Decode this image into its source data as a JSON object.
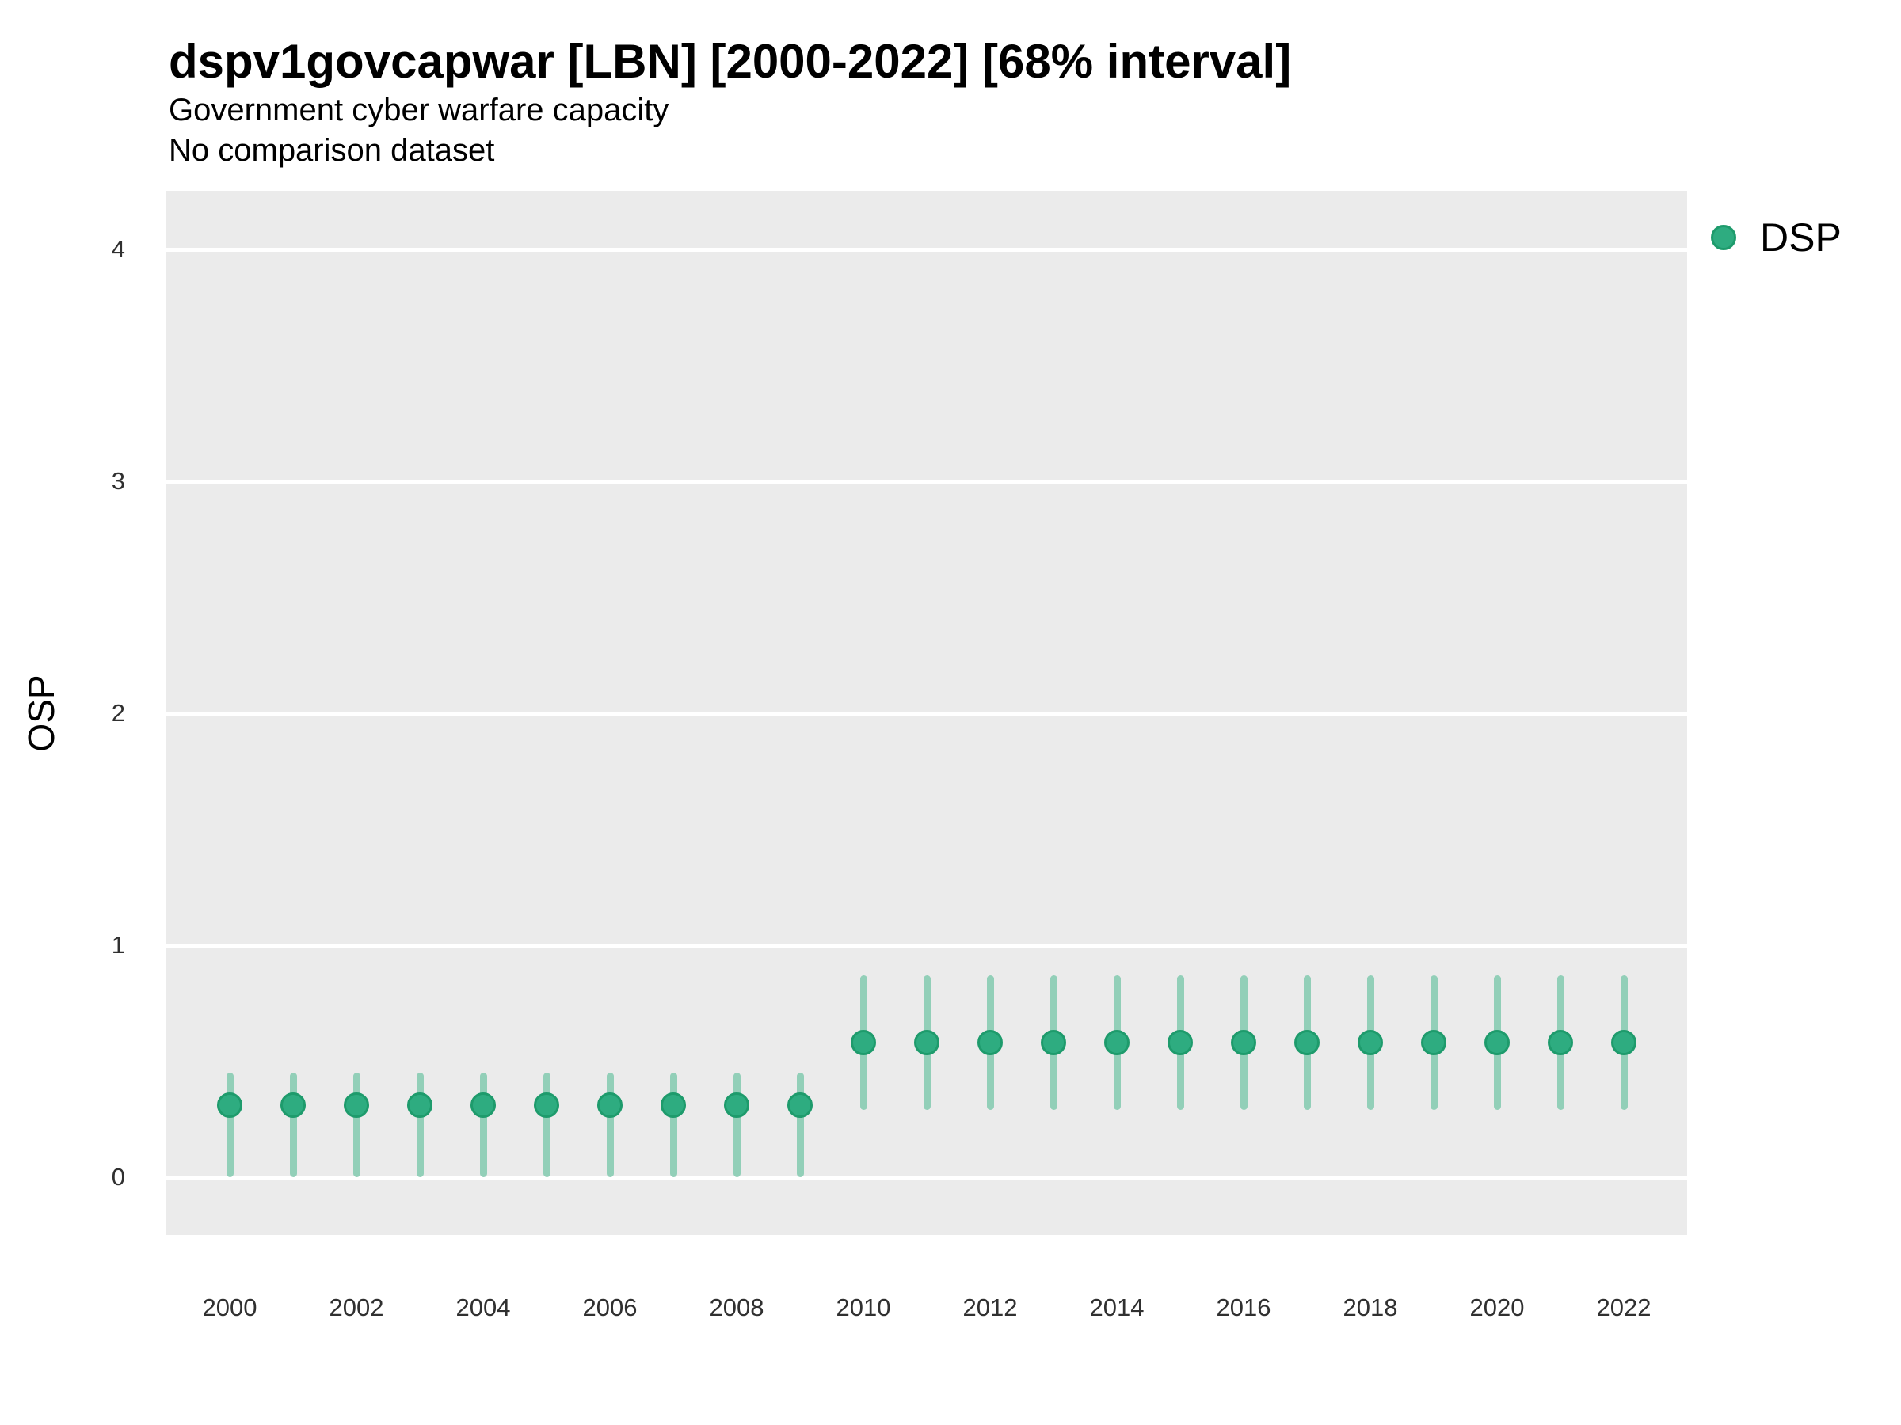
{
  "chart_data": {
    "type": "scatter",
    "title": "dspv1govcapwar [LBN] [2000-2022] [68% interval]",
    "subtitle": "Government cyber warfare capacity",
    "note": "No comparison dataset",
    "xlabel": "",
    "ylabel": "OSP",
    "interval_level": "68%",
    "ylim": [
      -0.25,
      4.25
    ],
    "yticks": [
      0,
      1,
      2,
      3,
      4
    ],
    "xticks": [
      2000,
      2002,
      2004,
      2006,
      2008,
      2010,
      2012,
      2014,
      2016,
      2018,
      2020,
      2022
    ],
    "grid": "major horizontal white lines on gray panel, no minor gridlines",
    "legend_position": "right-top",
    "series": [
      {
        "name": "DSP",
        "x": [
          2000,
          2001,
          2002,
          2003,
          2004,
          2005,
          2006,
          2007,
          2008,
          2009,
          2010,
          2011,
          2012,
          2013,
          2014,
          2015,
          2016,
          2017,
          2018,
          2019,
          2020,
          2021,
          2022
        ],
        "y": [
          0.31,
          0.31,
          0.31,
          0.31,
          0.31,
          0.31,
          0.31,
          0.31,
          0.31,
          0.31,
          0.58,
          0.58,
          0.58,
          0.58,
          0.58,
          0.58,
          0.58,
          0.58,
          0.58,
          0.58,
          0.58,
          0.58,
          0.58
        ],
        "lower": [
          0.0,
          0.0,
          0.0,
          0.0,
          0.0,
          0.0,
          0.0,
          0.0,
          0.0,
          0.0,
          0.29,
          0.29,
          0.29,
          0.29,
          0.29,
          0.29,
          0.29,
          0.29,
          0.29,
          0.29,
          0.29,
          0.29,
          0.29
        ],
        "upper": [
          0.45,
          0.45,
          0.45,
          0.45,
          0.45,
          0.45,
          0.45,
          0.45,
          0.45,
          0.45,
          0.87,
          0.87,
          0.87,
          0.87,
          0.87,
          0.87,
          0.87,
          0.87,
          0.87,
          0.87,
          0.87,
          0.87,
          0.87
        ]
      }
    ],
    "colors": {
      "point": "#2EAC80",
      "point_border": "#1E9B6C",
      "interval": "#92CFB8",
      "panel_bg": "#EBEBEB",
      "grid": "#FFFFFF",
      "text": "#000000",
      "tick_text": "#303030"
    }
  }
}
